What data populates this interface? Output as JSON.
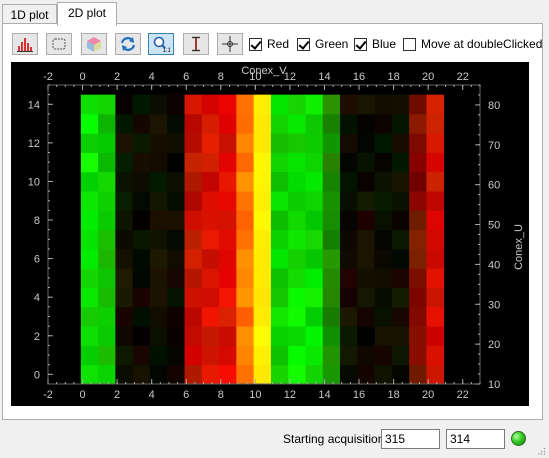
{
  "tabs": [
    {
      "label": "1D plot",
      "active": false
    },
    {
      "label": "2D plot",
      "active": true
    }
  ],
  "toolbar": {
    "buttons": [
      {
        "name": "histogram-icon"
      },
      {
        "name": "roi-rect-icon"
      },
      {
        "name": "rgb-cube-icon"
      },
      {
        "name": "refresh-icon"
      },
      {
        "name": "zoom-1to1-icon",
        "checked": true
      },
      {
        "name": "vertical-cursor-icon"
      },
      {
        "name": "crosshair-icon"
      }
    ],
    "checkboxes": [
      {
        "label": "Red",
        "checked": true
      },
      {
        "label": "Green",
        "checked": true
      },
      {
        "label": "Blue",
        "checked": true
      },
      {
        "label": "Move at doubleClicked",
        "checked": false
      }
    ]
  },
  "plot": {
    "top_axis_title": "Conex_V",
    "right_axis_title": "Conex_U",
    "x_ticks": [
      "-2",
      "0",
      "2",
      "4",
      "6",
      "8",
      "10",
      "12",
      "14",
      "16",
      "18",
      "20",
      "22"
    ],
    "y_left_ticks": [
      "0",
      "2",
      "4",
      "6",
      "8",
      "10",
      "12",
      "14"
    ],
    "y_right_ticks": [
      "10",
      "20",
      "30",
      "40",
      "50",
      "60",
      "70",
      "80"
    ]
  },
  "chart_data": {
    "type": "heatmap",
    "xlabel": "Conex_V",
    "ylabel": "Conex_U",
    "x_range": [
      -2,
      23
    ],
    "y_range": [
      -0.5,
      15
    ],
    "y_right_range": [
      10,
      85
    ],
    "columns": [
      {
        "x": 0,
        "color": "green",
        "intensity": 1.0
      },
      {
        "x": 1,
        "color": "green",
        "intensity": 0.9
      },
      {
        "x": 2,
        "color": "dark",
        "intensity": 0.15
      },
      {
        "x": 3,
        "color": "dark",
        "intensity": 0.1
      },
      {
        "x": 4,
        "color": "dark",
        "intensity": 0.1
      },
      {
        "x": 5,
        "color": "dark",
        "intensity": 0.1
      },
      {
        "x": 6,
        "color": "red",
        "intensity": 0.85
      },
      {
        "x": 7,
        "color": "red",
        "intensity": 0.95
      },
      {
        "x": 8,
        "color": "red",
        "intensity": 1.0
      },
      {
        "x": 9,
        "color": "orange",
        "intensity": 1.0
      },
      {
        "x": 10,
        "color": "yellow",
        "intensity": 1.0
      },
      {
        "x": 11,
        "color": "green",
        "intensity": 0.95
      },
      {
        "x": 12,
        "color": "green",
        "intensity": 1.0
      },
      {
        "x": 13,
        "color": "green",
        "intensity": 1.0
      },
      {
        "x": 14,
        "color": "green",
        "intensity": 0.6
      },
      {
        "x": 15,
        "color": "dark",
        "intensity": 0.15
      },
      {
        "x": 16,
        "color": "dark",
        "intensity": 0.1
      },
      {
        "x": 17,
        "color": "dark",
        "intensity": 0.1
      },
      {
        "x": 18,
        "color": "dark",
        "intensity": 0.1
      },
      {
        "x": 19,
        "color": "red",
        "intensity": 0.55
      },
      {
        "x": 20,
        "color": "red",
        "intensity": 0.95
      }
    ],
    "rows": 15
  },
  "status": {
    "label": "Starting acquisition",
    "field1": "315",
    "field2": "314",
    "led_color": "#33cc22"
  }
}
